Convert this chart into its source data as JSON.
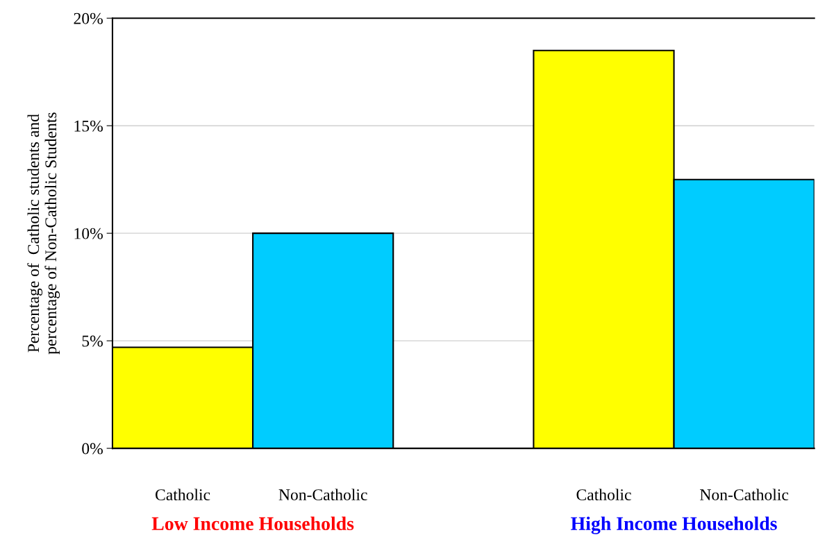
{
  "chart_data": {
    "type": "bar",
    "ylabel": "Percentage of  Catholic students and\npercentage of Non-Catholic Students",
    "categories": [
      "Catholic",
      "Non-Catholic",
      null,
      "Catholic",
      "Non-Catholic"
    ],
    "values": [
      4.7,
      10,
      null,
      18.5,
      12.5
    ],
    "colors": [
      "#ffff00",
      "#00ccff",
      "#ffffff",
      "#ffff00",
      "#00ccff"
    ],
    "ylim": [
      0,
      20
    ],
    "yticks": [
      {
        "value": 0,
        "label": "0%"
      },
      {
        "value": 5,
        "label": "5%"
      },
      {
        "value": 10,
        "label": "10%"
      },
      {
        "value": 15,
        "label": "15%"
      },
      {
        "value": 20,
        "label": "20%"
      }
    ],
    "grid": "y",
    "annotations": [
      "Low Income Households",
      "High Income Households"
    ]
  }
}
